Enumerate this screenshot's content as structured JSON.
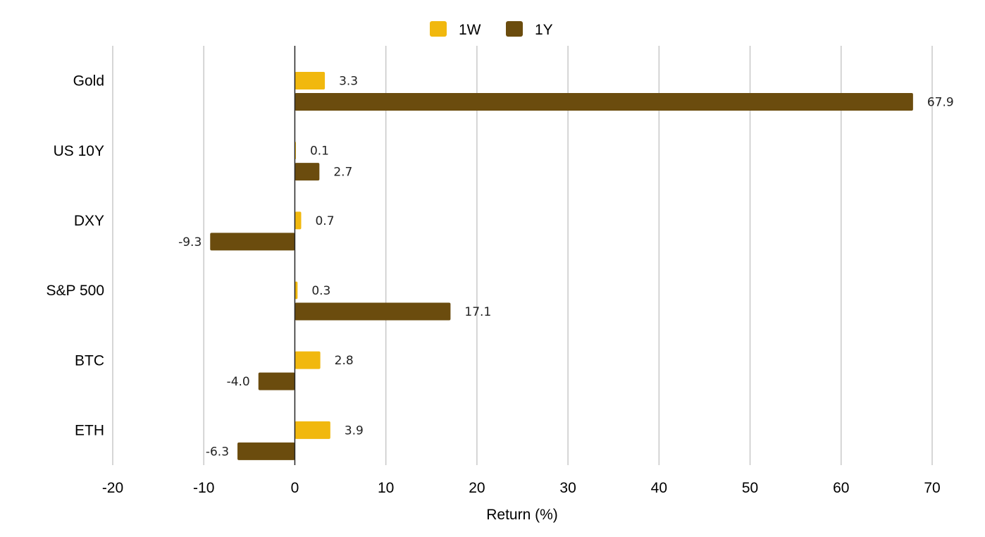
{
  "chart_data": {
    "type": "bar",
    "orientation": "horizontal",
    "categories": [
      "Gold",
      "US 10Y",
      "DXY",
      "S&P 500",
      "BTC",
      "ETH"
    ],
    "series": [
      {
        "name": "1W",
        "values": [
          3.3,
          0.1,
          0.7,
          0.3,
          2.8,
          3.9
        ],
        "labels": [
          "3.3",
          "0.1",
          "0.7",
          "0.3",
          "2.8",
          "3.9"
        ],
        "color": "#F1B80E"
      },
      {
        "name": "1Y",
        "values": [
          67.9,
          2.7,
          -9.3,
          17.1,
          -4.0,
          -6.3
        ],
        "labels": [
          "67.9",
          "2.7",
          "-9.3",
          "17.1",
          "-4.0",
          "-6.3"
        ],
        "color": "#6B4C0E"
      }
    ],
    "xlabel": "Return (%)",
    "ylabel": "",
    "xlim": [
      -20,
      70
    ],
    "xticks": [
      -20,
      -10,
      0,
      10,
      20,
      30,
      40,
      50,
      60,
      70
    ],
    "xtick_labels": [
      "-20",
      "-10",
      "0",
      "10",
      "20",
      "30",
      "40",
      "50",
      "60",
      "70"
    ],
    "grid": true,
    "legend": "top-center"
  }
}
